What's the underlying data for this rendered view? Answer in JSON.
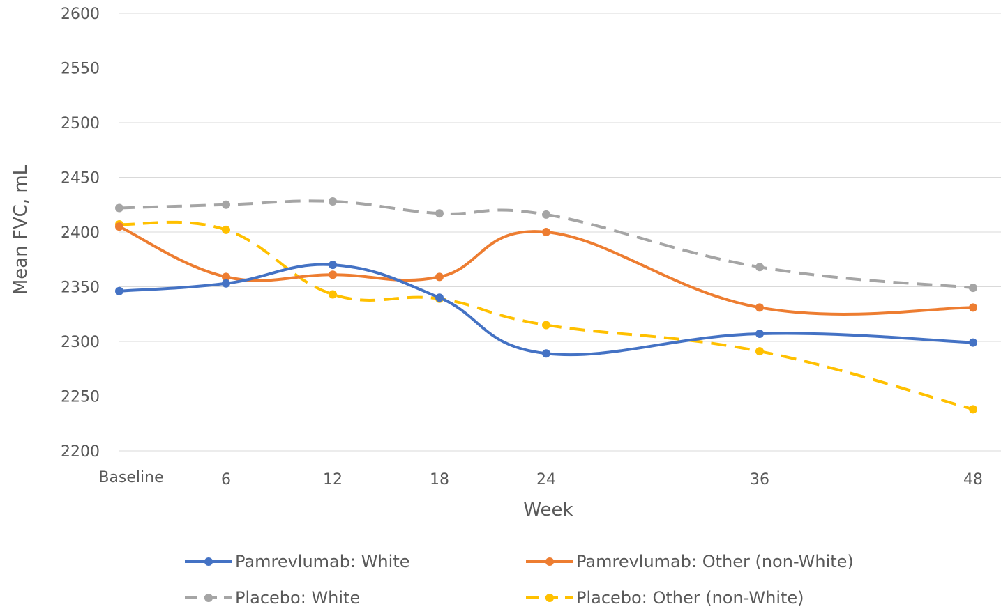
{
  "chart_data": {
    "type": "line",
    "categories": [
      "Baseline",
      "6",
      "12",
      "18",
      "24",
      "36",
      "48"
    ],
    "x": [
      0,
      6,
      12,
      18,
      24,
      36,
      48
    ],
    "xlabel": "Week",
    "ylabel": "Mean FVC, mL",
    "ylim": [
      2200,
      2600
    ],
    "yticks": [
      2200,
      2250,
      2300,
      2350,
      2400,
      2450,
      2500,
      2550,
      2600
    ],
    "grid": true,
    "legend_position": "bottom",
    "series": [
      {
        "name": "Pamrevlumab: White",
        "color": "#4472C4",
        "dashed": false,
        "values": [
          2346,
          2353,
          2370,
          2340,
          2289,
          2307,
          2299
        ]
      },
      {
        "name": "Pamrevlumab: Other (non-White)",
        "color": "#ED7D31",
        "dashed": false,
        "values": [
          2405,
          2359,
          2361,
          2359,
          2400,
          2331,
          2331
        ]
      },
      {
        "name": "Placebo: White",
        "color": "#A5A5A5",
        "dashed": true,
        "values": [
          2422,
          2425,
          2428,
          2417,
          2416,
          2368,
          2349
        ]
      },
      {
        "name": "Placebo: Other (non-White)",
        "color": "#FFC000",
        "dashed": true,
        "values": [
          2407,
          2402,
          2343,
          2339,
          2315,
          2291,
          2238
        ]
      }
    ]
  }
}
